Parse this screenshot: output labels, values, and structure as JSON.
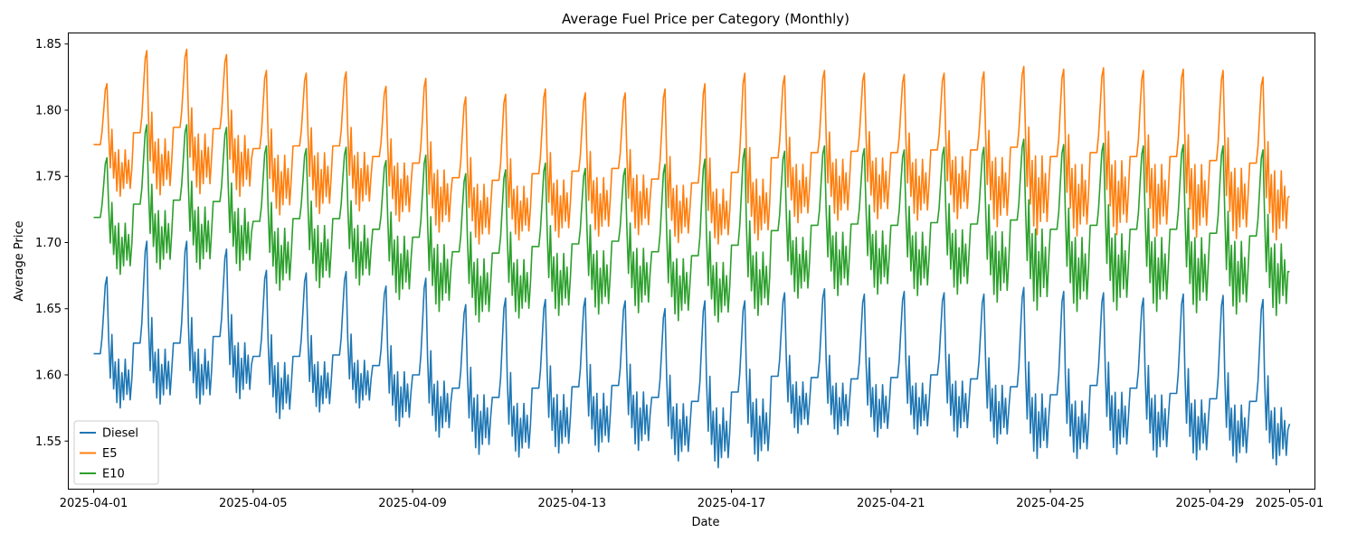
{
  "chart_data": {
    "type": "line",
    "title": "Average Fuel Price per Category (Monthly)",
    "xlabel": "Date",
    "ylabel": "Average Price",
    "x_type": "datetime",
    "x_range": [
      "2025-03-31T09:00",
      "2025-05-01T15:00"
    ],
    "xticks": [
      "2025-04-01",
      "2025-04-05",
      "2025-04-09",
      "2025-04-13",
      "2025-04-17",
      "2025-04-21",
      "2025-04-25",
      "2025-04-29",
      "2025-05-01"
    ],
    "ylim": [
      1.514,
      1.858
    ],
    "yticks": [
      "1.55",
      "1.60",
      "1.65",
      "1.70",
      "1.75",
      "1.80",
      "1.85"
    ],
    "grid": false,
    "legend": "bottom-left",
    "sampling": "hourly, 2025-04-01T00:00 to 2025-05-01T00:00",
    "series": [
      {
        "name": "Diesel",
        "color": "#1f77b4",
        "daily": [
          {
            "date": "2025-04-01",
            "base": 1.616,
            "peak": 1.674,
            "low": 1.575
          },
          {
            "date": "2025-04-02",
            "base": 1.624,
            "peak": 1.701,
            "low": 1.578
          },
          {
            "date": "2025-04-03",
            "base": 1.624,
            "peak": 1.701,
            "low": 1.578
          },
          {
            "date": "2025-04-04",
            "base": 1.629,
            "peak": 1.695,
            "low": 1.582
          },
          {
            "date": "2025-04-05",
            "base": 1.614,
            "peak": 1.679,
            "low": 1.567
          },
          {
            "date": "2025-04-06",
            "base": 1.614,
            "peak": 1.677,
            "low": 1.572
          },
          {
            "date": "2025-04-07",
            "base": 1.615,
            "peak": 1.678,
            "low": 1.575
          },
          {
            "date": "2025-04-08",
            "base": 1.607,
            "peak": 1.667,
            "low": 1.561
          },
          {
            "date": "2025-04-09",
            "base": 1.6,
            "peak": 1.673,
            "low": 1.553
          },
          {
            "date": "2025-04-10",
            "base": 1.59,
            "peak": 1.653,
            "low": 1.54
          },
          {
            "date": "2025-04-11",
            "base": 1.583,
            "peak": 1.658,
            "low": 1.538
          },
          {
            "date": "2025-04-12",
            "base": 1.59,
            "peak": 1.657,
            "low": 1.541
          },
          {
            "date": "2025-04-13",
            "base": 1.591,
            "peak": 1.658,
            "low": 1.542
          },
          {
            "date": "2025-04-14",
            "base": 1.592,
            "peak": 1.656,
            "low": 1.543
          },
          {
            "date": "2025-04-15",
            "base": 1.583,
            "peak": 1.65,
            "low": 1.535
          },
          {
            "date": "2025-04-16",
            "base": 1.58,
            "peak": 1.656,
            "low": 1.53
          },
          {
            "date": "2025-04-17",
            "base": 1.587,
            "peak": 1.656,
            "low": 1.535
          },
          {
            "date": "2025-04-18",
            "base": 1.599,
            "peak": 1.662,
            "low": 1.556
          },
          {
            "date": "2025-04-19",
            "base": 1.598,
            "peak": 1.665,
            "low": 1.555
          },
          {
            "date": "2025-04-20",
            "base": 1.597,
            "peak": 1.661,
            "low": 1.553
          },
          {
            "date": "2025-04-21",
            "base": 1.598,
            "peak": 1.663,
            "low": 1.555
          },
          {
            "date": "2025-04-22",
            "base": 1.6,
            "peak": 1.662,
            "low": 1.553
          },
          {
            "date": "2025-04-23",
            "base": 1.597,
            "peak": 1.661,
            "low": 1.548
          },
          {
            "date": "2025-04-24",
            "base": 1.591,
            "peak": 1.666,
            "low": 1.537
          },
          {
            "date": "2025-04-25",
            "base": 1.585,
            "peak": 1.663,
            "low": 1.537
          },
          {
            "date": "2025-04-26",
            "base": 1.592,
            "peak": 1.662,
            "low": 1.54
          },
          {
            "date": "2025-04-27",
            "base": 1.59,
            "peak": 1.658,
            "low": 1.538
          },
          {
            "date": "2025-04-28",
            "base": 1.586,
            "peak": 1.661,
            "low": 1.536
          },
          {
            "date": "2025-04-29",
            "base": 1.582,
            "peak": 1.66,
            "low": 1.534
          },
          {
            "date": "2025-04-30",
            "base": 1.58,
            "peak": 1.657,
            "low": 1.532
          }
        ],
        "last": 1.563
      },
      {
        "name": "E5",
        "color": "#ff7f0e",
        "daily": [
          {
            "date": "2025-04-01",
            "base": 1.774,
            "peak": 1.82,
            "low": 1.735
          },
          {
            "date": "2025-04-02",
            "base": 1.783,
            "peak": 1.845,
            "low": 1.736
          },
          {
            "date": "2025-04-03",
            "base": 1.787,
            "peak": 1.846,
            "low": 1.737
          },
          {
            "date": "2025-04-04",
            "base": 1.786,
            "peak": 1.842,
            "low": 1.735
          },
          {
            "date": "2025-04-05",
            "base": 1.771,
            "peak": 1.83,
            "low": 1.721
          },
          {
            "date": "2025-04-06",
            "base": 1.773,
            "peak": 1.828,
            "low": 1.722
          },
          {
            "date": "2025-04-07",
            "base": 1.773,
            "peak": 1.829,
            "low": 1.724
          },
          {
            "date": "2025-04-08",
            "base": 1.765,
            "peak": 1.818,
            "low": 1.716
          },
          {
            "date": "2025-04-09",
            "base": 1.76,
            "peak": 1.824,
            "low": 1.708
          },
          {
            "date": "2025-04-10",
            "base": 1.749,
            "peak": 1.81,
            "low": 1.699
          },
          {
            "date": "2025-04-11",
            "base": 1.747,
            "peak": 1.812,
            "low": 1.702
          },
          {
            "date": "2025-04-12",
            "base": 1.752,
            "peak": 1.816,
            "low": 1.704
          },
          {
            "date": "2025-04-13",
            "base": 1.754,
            "peak": 1.813,
            "low": 1.705
          },
          {
            "date": "2025-04-14",
            "base": 1.756,
            "peak": 1.813,
            "low": 1.706
          },
          {
            "date": "2025-04-15",
            "base": 1.748,
            "peak": 1.816,
            "low": 1.7
          },
          {
            "date": "2025-04-16",
            "base": 1.745,
            "peak": 1.82,
            "low": 1.699
          },
          {
            "date": "2025-04-17",
            "base": 1.753,
            "peak": 1.828,
            "low": 1.702
          },
          {
            "date": "2025-04-18",
            "base": 1.764,
            "peak": 1.826,
            "low": 1.715
          },
          {
            "date": "2025-04-19",
            "base": 1.768,
            "peak": 1.83,
            "low": 1.717
          },
          {
            "date": "2025-04-20",
            "base": 1.769,
            "peak": 1.828,
            "low": 1.718
          },
          {
            "date": "2025-04-21",
            "base": 1.768,
            "peak": 1.827,
            "low": 1.717
          },
          {
            "date": "2025-04-22",
            "base": 1.77,
            "peak": 1.828,
            "low": 1.718
          },
          {
            "date": "2025-04-23",
            "base": 1.77,
            "peak": 1.829,
            "low": 1.712
          },
          {
            "date": "2025-04-24",
            "base": 1.772,
            "peak": 1.833,
            "low": 1.706
          },
          {
            "date": "2025-04-25",
            "base": 1.765,
            "peak": 1.831,
            "low": 1.705
          },
          {
            "date": "2025-04-26",
            "base": 1.768,
            "peak": 1.832,
            "low": 1.706
          },
          {
            "date": "2025-04-27",
            "base": 1.765,
            "peak": 1.83,
            "low": 1.705
          },
          {
            "date": "2025-04-28",
            "base": 1.765,
            "peak": 1.831,
            "low": 1.704
          },
          {
            "date": "2025-04-29",
            "base": 1.762,
            "peak": 1.83,
            "low": 1.703
          },
          {
            "date": "2025-04-30",
            "base": 1.76,
            "peak": 1.825,
            "low": 1.702
          }
        ],
        "last": 1.735
      },
      {
        "name": "E10",
        "color": "#2ca02c",
        "daily": [
          {
            "date": "2025-04-01",
            "base": 1.719,
            "peak": 1.764,
            "low": 1.676
          },
          {
            "date": "2025-04-02",
            "base": 1.729,
            "peak": 1.789,
            "low": 1.68
          },
          {
            "date": "2025-04-03",
            "base": 1.732,
            "peak": 1.789,
            "low": 1.68
          },
          {
            "date": "2025-04-04",
            "base": 1.731,
            "peak": 1.787,
            "low": 1.679
          },
          {
            "date": "2025-04-05",
            "base": 1.716,
            "peak": 1.773,
            "low": 1.664
          },
          {
            "date": "2025-04-06",
            "base": 1.718,
            "peak": 1.771,
            "low": 1.666
          },
          {
            "date": "2025-04-07",
            "base": 1.718,
            "peak": 1.772,
            "low": 1.668
          },
          {
            "date": "2025-04-08",
            "base": 1.71,
            "peak": 1.762,
            "low": 1.657
          },
          {
            "date": "2025-04-09",
            "base": 1.704,
            "peak": 1.766,
            "low": 1.648
          },
          {
            "date": "2025-04-10",
            "base": 1.693,
            "peak": 1.752,
            "low": 1.64
          },
          {
            "date": "2025-04-11",
            "base": 1.692,
            "peak": 1.755,
            "low": 1.643
          },
          {
            "date": "2025-04-12",
            "base": 1.697,
            "peak": 1.76,
            "low": 1.645
          },
          {
            "date": "2025-04-13",
            "base": 1.699,
            "peak": 1.756,
            "low": 1.646
          },
          {
            "date": "2025-04-14",
            "base": 1.701,
            "peak": 1.756,
            "low": 1.647
          },
          {
            "date": "2025-04-15",
            "base": 1.693,
            "peak": 1.759,
            "low": 1.641
          },
          {
            "date": "2025-04-16",
            "base": 1.69,
            "peak": 1.763,
            "low": 1.64
          },
          {
            "date": "2025-04-17",
            "base": 1.698,
            "peak": 1.771,
            "low": 1.645
          },
          {
            "date": "2025-04-18",
            "base": 1.709,
            "peak": 1.769,
            "low": 1.658
          },
          {
            "date": "2025-04-19",
            "base": 1.713,
            "peak": 1.773,
            "low": 1.66
          },
          {
            "date": "2025-04-20",
            "base": 1.714,
            "peak": 1.771,
            "low": 1.661
          },
          {
            "date": "2025-04-21",
            "base": 1.713,
            "peak": 1.77,
            "low": 1.66
          },
          {
            "date": "2025-04-22",
            "base": 1.715,
            "peak": 1.772,
            "low": 1.661
          },
          {
            "date": "2025-04-23",
            "base": 1.714,
            "peak": 1.772,
            "low": 1.655
          },
          {
            "date": "2025-04-24",
            "base": 1.717,
            "peak": 1.778,
            "low": 1.649
          },
          {
            "date": "2025-04-25",
            "base": 1.71,
            "peak": 1.774,
            "low": 1.648
          },
          {
            "date": "2025-04-26",
            "base": 1.713,
            "peak": 1.775,
            "low": 1.649
          },
          {
            "date": "2025-04-27",
            "base": 1.71,
            "peak": 1.773,
            "low": 1.648
          },
          {
            "date": "2025-04-28",
            "base": 1.71,
            "peak": 1.774,
            "low": 1.647
          },
          {
            "date": "2025-04-29",
            "base": 1.707,
            "peak": 1.773,
            "low": 1.646
          },
          {
            "date": "2025-04-30",
            "base": 1.705,
            "peak": 1.77,
            "low": 1.645
          }
        ],
        "last": 1.678
      }
    ]
  }
}
